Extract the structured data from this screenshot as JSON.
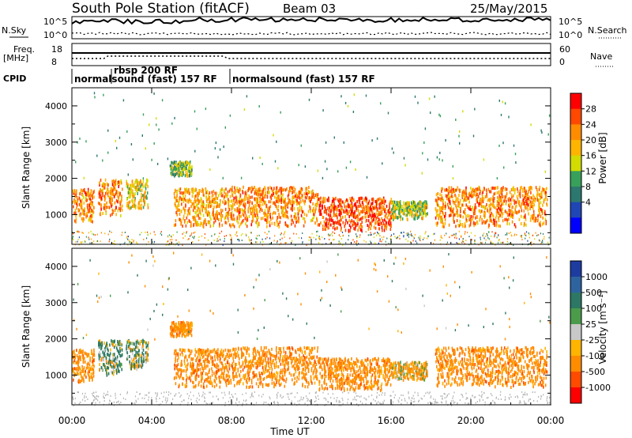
{
  "header": {
    "station": "South Pole Station (fitACF)",
    "beam": "Beam 03",
    "date": "25/May/2015"
  },
  "noise_panel": {
    "left_label": "N.Sky",
    "right_label": "N.Search",
    "left_ticks": [
      "10^5",
      "10^0"
    ],
    "right_ticks": [
      "10^5",
      "10^0"
    ]
  },
  "freq_panel": {
    "left_label_1": "Freq.",
    "left_label_2": "[MHz]",
    "left_ticks": [
      "18",
      "8"
    ],
    "right_ticks": [
      "60",
      "0"
    ],
    "right_label": "Nave"
  },
  "cpid": {
    "label": "CPID",
    "segments": [
      {
        "name": "normalsound (fast) 157 RF",
        "start_hour": 0.0
      },
      {
        "name": "rbsp 200 RF",
        "start_hour": 1.97
      },
      {
        "name": "normalsound (fast) 157 RF",
        "start_hour": 7.95
      }
    ]
  },
  "power_colorbar": {
    "title": "Power [dB]",
    "ticks": [
      "28",
      "24",
      "20",
      "16",
      "12",
      "8",
      "4"
    ],
    "colors": [
      "#ff0000",
      "#ff4800",
      "#ff8c00",
      "#ffb400",
      "#d2dc00",
      "#37a05a",
      "#2d786e",
      "#1f46b4",
      "#0000ff"
    ]
  },
  "velocity_colorbar": {
    "title": "Velocity [m s⁻¹]",
    "ticks": [
      "1000",
      "500",
      "100",
      "25",
      "-25",
      "-100",
      "-500",
      "-1000"
    ],
    "colors": [
      "#1e3ca0",
      "#2d64a0",
      "#2d7864",
      "#4b9b4b",
      "#c8c8c8",
      "#ffb400",
      "#ff8c00",
      "#ff4b00",
      "#ff0000"
    ]
  },
  "axis_labels": {
    "y": "Slant Range [km]",
    "x": "Time UT"
  },
  "colors": {
    "ground_scatter": "#b4b4b4",
    "frame": "#000000"
  },
  "chart_data": [
    {
      "type": "heatmap",
      "title": "",
      "quantity": "Power",
      "units": "dB",
      "xlabel": "Time UT",
      "ylabel": "Slant Range [km]",
      "x_range": [
        0,
        24
      ],
      "x_ticks": [
        "00:00",
        "04:00",
        "08:00",
        "12:00",
        "16:00",
        "20:00",
        "00:00"
      ],
      "y_range": [
        180,
        4500
      ],
      "y_ticks": [
        1000,
        2000,
        3000,
        4000
      ],
      "color_range": [
        2,
        30
      ],
      "regions": [
        {
          "t0": 0.0,
          "t1": 1.1,
          "r0": 800,
          "r1": 1750,
          "value": 22
        },
        {
          "t0": 1.3,
          "t1": 2.5,
          "r0": 1000,
          "r1": 2000,
          "value": 22
        },
        {
          "t0": 2.7,
          "t1": 3.8,
          "r0": 1200,
          "r1": 2000,
          "value": 16
        },
        {
          "t0": 4.9,
          "t1": 6.0,
          "r0": 2100,
          "r1": 2500,
          "value": 12
        },
        {
          "t0": 5.1,
          "t1": 8.0,
          "r0": 700,
          "r1": 1750,
          "value": 20
        },
        {
          "t0": 8.0,
          "t1": 12.3,
          "r0": 700,
          "r1": 1800,
          "value": 22
        },
        {
          "t0": 12.3,
          "t1": 16.0,
          "r0": 600,
          "r1": 1500,
          "value": 26
        },
        {
          "t0": 16.0,
          "t1": 17.8,
          "r0": 900,
          "r1": 1400,
          "value": 14
        },
        {
          "t0": 18.2,
          "t1": 23.8,
          "r0": 700,
          "r1": 1800,
          "value": 22
        }
      ]
    },
    {
      "type": "heatmap",
      "title": "",
      "quantity": "Velocity",
      "units": "m s^-1",
      "xlabel": "Time UT",
      "ylabel": "Slant Range [km]",
      "x_range": [
        0,
        24
      ],
      "x_ticks": [
        "00:00",
        "04:00",
        "08:00",
        "12:00",
        "16:00",
        "20:00",
        "00:00"
      ],
      "y_range": [
        180,
        4500
      ],
      "y_ticks": [
        1000,
        2000,
        3000,
        4000
      ],
      "color_range": [
        -1000,
        1000
      ],
      "regions": [
        {
          "t0": 0.0,
          "t1": 1.1,
          "r0": 800,
          "r1": 1750,
          "value": -300
        },
        {
          "t0": 1.3,
          "t1": 2.5,
          "r0": 1000,
          "r1": 2000,
          "value": 100
        },
        {
          "t0": 2.7,
          "t1": 3.8,
          "r0": 1200,
          "r1": 2000,
          "value": 50
        },
        {
          "t0": 4.9,
          "t1": 6.0,
          "r0": 2100,
          "r1": 2500,
          "value": -300
        },
        {
          "t0": 5.1,
          "t1": 8.0,
          "r0": 700,
          "r1": 1750,
          "value": -300
        },
        {
          "t0": 8.0,
          "t1": 12.3,
          "r0": 700,
          "r1": 1800,
          "value": -300
        },
        {
          "t0": 12.3,
          "t1": 16.0,
          "r0": 600,
          "r1": 1500,
          "value": -300
        },
        {
          "t0": 16.0,
          "t1": 17.8,
          "r0": 900,
          "r1": 1400,
          "value": -150
        },
        {
          "t0": 18.2,
          "t1": 23.8,
          "r0": 700,
          "r1": 1800,
          "value": -300
        }
      ]
    }
  ]
}
